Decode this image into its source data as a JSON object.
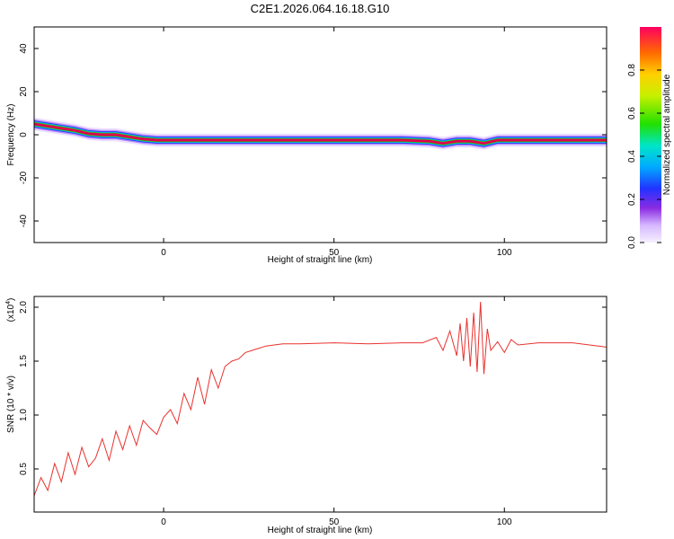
{
  "title": "C2E1.2026.064.16.18.G10",
  "chart_data": [
    {
      "type": "heatmap",
      "xlabel": "Height of straight line (km)",
      "ylabel": "Frequency (Hz)",
      "xlim": [
        -38,
        130
      ],
      "ylim": [
        -50,
        50
      ],
      "x_ticks": [
        "0",
        "50",
        "100"
      ],
      "x_tick_values": [
        0,
        50,
        100
      ],
      "y_ticks": [
        "40",
        "20",
        "0",
        "-20",
        "-40"
      ],
      "y_tick_values": [
        40,
        20,
        0,
        -20,
        -40
      ],
      "colorbar": {
        "label": "Normalized spectral amplitude",
        "ticks": [
          "0.0",
          "0.2",
          "0.4",
          "0.6",
          "0.8"
        ],
        "tick_values": [
          0.0,
          0.2,
          0.4,
          0.6,
          0.8
        ],
        "range": [
          0,
          1
        ]
      },
      "ridge": {
        "x": [
          -38,
          -34,
          -30,
          -26,
          -22,
          -18,
          -14,
          -10,
          -6,
          -2,
          5,
          15,
          30,
          50,
          70,
          78,
          82,
          86,
          90,
          94,
          98,
          110,
          130
        ],
        "frequency": [
          5,
          4,
          3,
          2,
          0.5,
          0,
          0,
          -1,
          -2,
          -2.5,
          -2.5,
          -2.5,
          -2.5,
          -2.5,
          -2.5,
          -3,
          -4,
          -3,
          -3,
          -4,
          -2.5,
          -2.5,
          -2.5
        ]
      }
    },
    {
      "type": "line",
      "xlabel": "Height of straight line (km)",
      "ylabel": "SNR (10 * v/v)",
      "y_multiplier": "(x10",
      "y_multiplier_exp": "4",
      "xlim": [
        -38,
        130
      ],
      "ylim": [
        0.1,
        2.1
      ],
      "x_ticks": [
        "0",
        "50",
        "100"
      ],
      "x_tick_values": [
        0,
        50,
        100
      ],
      "y_ticks": [
        "2.0",
        "1.5",
        "1.0",
        "0.5"
      ],
      "y_tick_values": [
        2.0,
        1.5,
        1.0,
        0.5
      ],
      "color": "#e8322e",
      "series": [
        {
          "x": [
            -38,
            -36,
            -34,
            -32,
            -30,
            -28,
            -26,
            -24,
            -22,
            -20,
            -18,
            -16,
            -14,
            -12,
            -10,
            -8,
            -6,
            -4,
            -2,
            0,
            2,
            4,
            6,
            8,
            10,
            12,
            14,
            16,
            18,
            20,
            22,
            24,
            26,
            28,
            30,
            35,
            40,
            50,
            60,
            70,
            76,
            80,
            82,
            84,
            86,
            87,
            88,
            89,
            90,
            91,
            92,
            93,
            94,
            95,
            96,
            98,
            100,
            102,
            104,
            110,
            120,
            125,
            130
          ],
          "values": [
            0.25,
            0.42,
            0.3,
            0.55,
            0.38,
            0.65,
            0.45,
            0.7,
            0.52,
            0.6,
            0.78,
            0.58,
            0.85,
            0.68,
            0.9,
            0.72,
            0.95,
            0.88,
            0.82,
            0.98,
            1.05,
            0.92,
            1.2,
            1.05,
            1.35,
            1.1,
            1.42,
            1.25,
            1.45,
            1.5,
            1.52,
            1.58,
            1.6,
            1.62,
            1.64,
            1.66,
            1.66,
            1.67,
            1.66,
            1.67,
            1.67,
            1.72,
            1.6,
            1.78,
            1.55,
            1.85,
            1.5,
            1.9,
            1.45,
            1.95,
            1.4,
            2.05,
            1.38,
            1.8,
            1.6,
            1.68,
            1.58,
            1.7,
            1.65,
            1.67,
            1.67,
            1.65,
            1.63
          ]
        }
      ]
    }
  ]
}
